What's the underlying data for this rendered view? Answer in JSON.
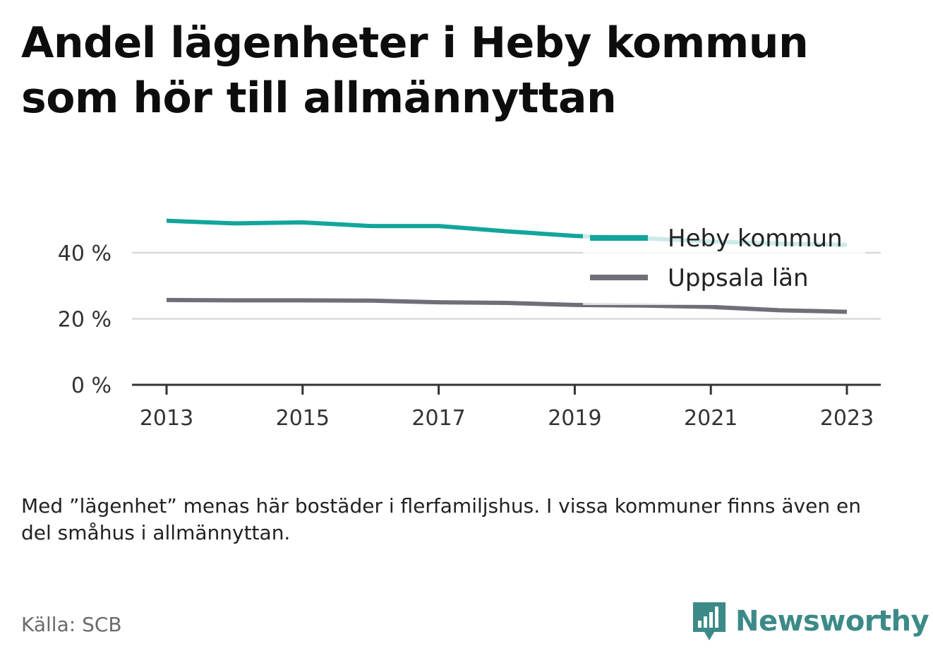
{
  "title": "Andel lägenheter i Heby kommun som hör till allmännyttan",
  "note": "Med ”lägenhet” menas här bostäder i flerfamiljshus. I vissa kommuner finns även en del småhus i allmännyttan.",
  "source": "Källa: SCB",
  "brand": {
    "name": "Newsworthy",
    "icon": "newsworthy-logo-icon",
    "color": "#3c8a88"
  },
  "chart_data": {
    "type": "line",
    "x": [
      2013,
      2014,
      2015,
      2016,
      2017,
      2018,
      2019,
      2020,
      2021,
      2022,
      2023
    ],
    "x_ticks": [
      "2013",
      "2015",
      "2017",
      "2019",
      "2021",
      "2023"
    ],
    "y_ticks": [
      "0 %",
      "20 %",
      "40 %"
    ],
    "y_tick_values": [
      0,
      20,
      40
    ],
    "ylim": [
      0,
      50
    ],
    "grid": true,
    "legend_position": "top-right",
    "series": [
      {
        "name": "Heby kommun",
        "color": "#12a59b",
        "values": [
          49.7,
          48.9,
          49.2,
          48.1,
          48.1,
          46.5,
          45.1,
          44.4,
          43.4,
          42.8,
          42.4
        ]
      },
      {
        "name": "Uppsala län",
        "color": "#6f6f78",
        "values": [
          25.7,
          25.6,
          25.6,
          25.5,
          25.0,
          24.8,
          24.2,
          24.0,
          23.6,
          22.6,
          22.1
        ]
      }
    ]
  }
}
